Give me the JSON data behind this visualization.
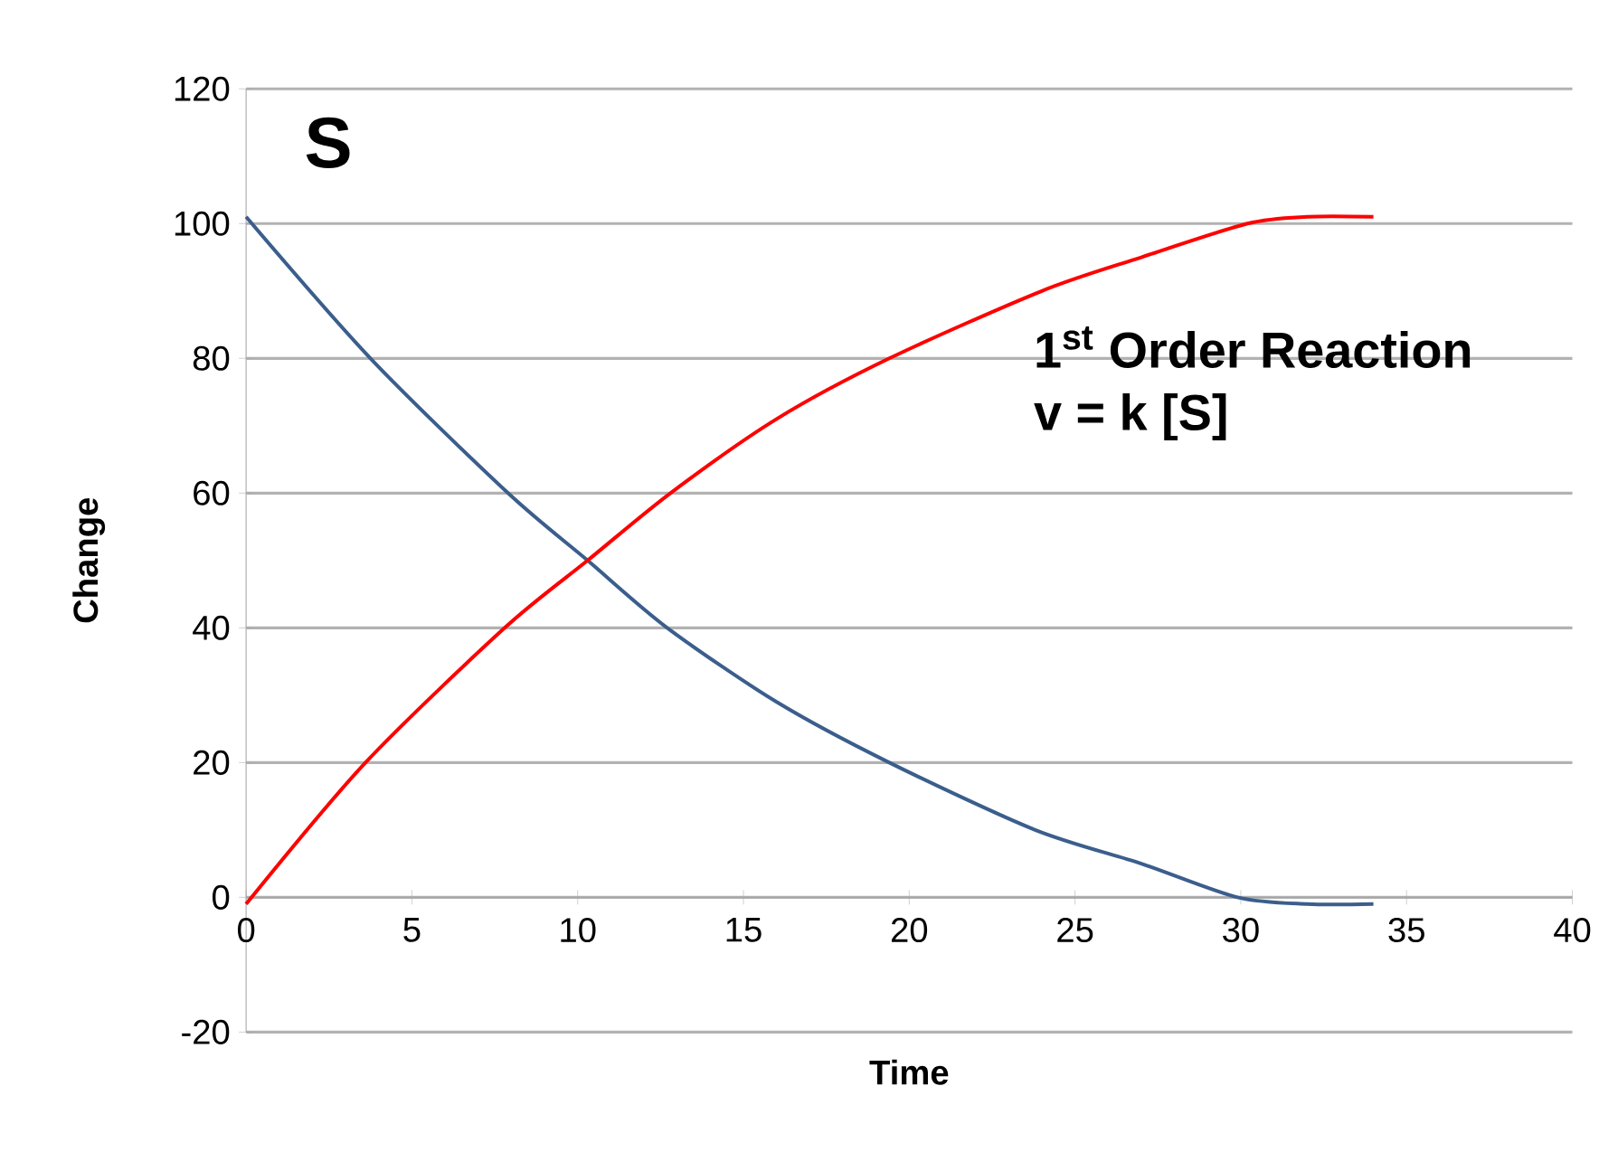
{
  "chart_data": {
    "type": "line",
    "xlabel": "Time",
    "ylabel": "Change",
    "annotations": [
      {
        "text": "S"
      },
      {
        "text": "1$^{st}$ Order Reaction"
      },
      {
        "text": "v = k [S]"
      }
    ],
    "xlim": [
      0,
      40
    ],
    "xticks": [
      0,
      5,
      10,
      15,
      20,
      25,
      30,
      35,
      40
    ],
    "ylim": [
      -20,
      120
    ],
    "yticks": [
      -20,
      0,
      20,
      40,
      60,
      80,
      100,
      120
    ],
    "grid": "y",
    "marker": "none",
    "line_style": "solid",
    "series": [
      {
        "color": "#3b5e8c",
        "x": [
          0,
          3.75,
          7.9,
          10.3,
          12.7,
          16,
          19.4,
          23.8,
          27,
          29.9,
          32,
          34
        ],
        "values": [
          101,
          80,
          60,
          50,
          40,
          29,
          20,
          10,
          5,
          0,
          -1,
          -1
        ]
      },
      {
        "color": "#ff0000",
        "x": [
          0,
          3.6,
          7.8,
          10.3,
          12.8,
          16,
          19.4,
          24,
          27,
          30.2,
          32,
          34
        ],
        "values": [
          -1,
          20,
          40,
          50,
          60,
          71,
          80,
          90,
          95,
          100,
          101,
          101
        ]
      }
    ]
  }
}
